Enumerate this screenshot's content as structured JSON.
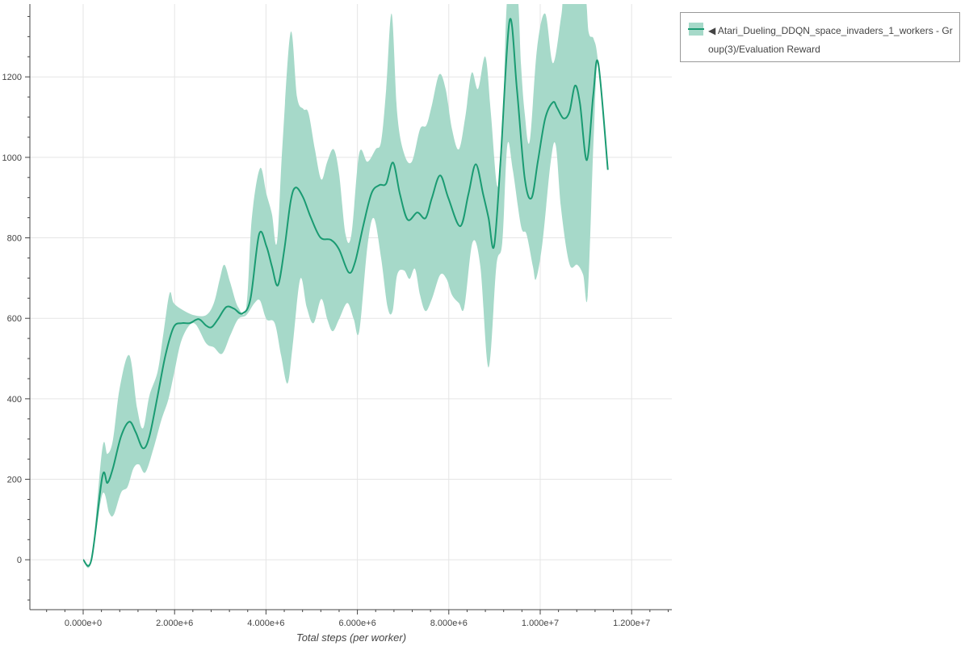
{
  "chart_data": {
    "type": "line",
    "title": "",
    "xlabel": "Total steps (per worker)",
    "ylabel": "",
    "xlim": [
      -1166000.0,
      12880000.0
    ],
    "ylim": [
      -124,
      1381
    ],
    "grid": true,
    "legend_placement": "outside-top-right",
    "x_ticks": [
      0,
      2000000.0,
      4000000.0,
      6000000.0,
      8000000.0,
      10000000.0,
      12000000.0
    ],
    "x_tick_labels": [
      "0.000e+0",
      "2.000e+6",
      "4.000e+6",
      "6.000e+6",
      "8.000e+6",
      "1.000e+7",
      "1.200e+7"
    ],
    "y_ticks": [
      0,
      200,
      400,
      600,
      800,
      1000,
      1200
    ],
    "y_tick_labels": [
      "0",
      "200",
      "400",
      "600",
      "800",
      "1000",
      "1200"
    ],
    "colors": {
      "line": "#1a9b72",
      "band": "#a6d9c9"
    },
    "series": [
      {
        "name": "◀ Atari_Dueling_DDQN_space_invaders_1_workers - Group(3)/Evaluation Reward",
        "mean": [
          [
            0,
            0
          ],
          [
            180000.0,
            0
          ],
          [
            420000.0,
            207
          ],
          [
            530000.0,
            191
          ],
          [
            650000.0,
            227
          ],
          [
            830000.0,
            307
          ],
          [
            1010000.0,
            343
          ],
          [
            1150000.0,
            317
          ],
          [
            1310000.0,
            277
          ],
          [
            1450000.0,
            307
          ],
          [
            1630000.0,
            408
          ],
          [
            1800000.0,
            508
          ],
          [
            1980000.0,
            578
          ],
          [
            2160000.0,
            588
          ],
          [
            2330000.0,
            588
          ],
          [
            2530000.0,
            598
          ],
          [
            2690000.0,
            582
          ],
          [
            2810000.0,
            578
          ],
          [
            2950000.0,
            598
          ],
          [
            3130000.0,
            628
          ],
          [
            3300000.0,
            624
          ],
          [
            3480000.0,
            612
          ],
          [
            3660000.0,
            648
          ],
          [
            3850000.0,
            809
          ],
          [
            4010000.0,
            779
          ],
          [
            4130000.0,
            729
          ],
          [
            4260000.0,
            682
          ],
          [
            4400000.0,
            770
          ],
          [
            4540000.0,
            891
          ],
          [
            4650000.0,
            925
          ],
          [
            4810000.0,
            901
          ],
          [
            4980000.0,
            851
          ],
          [
            5190000.0,
            801
          ],
          [
            5420000.0,
            795
          ],
          [
            5600000.0,
            771
          ],
          [
            5810000.0,
            714
          ],
          [
            5950000.0,
            740
          ],
          [
            6130000.0,
            831
          ],
          [
            6310000.0,
            911
          ],
          [
            6480000.0,
            931
          ],
          [
            6630000.0,
            935
          ],
          [
            6780000.0,
            987
          ],
          [
            6930000.0,
            909
          ],
          [
            7100000.0,
            845
          ],
          [
            7310000.0,
            863
          ],
          [
            7490000.0,
            849
          ],
          [
            7630000.0,
            899
          ],
          [
            7810000.0,
            955
          ],
          [
            7990000.0,
            899
          ],
          [
            8250000.0,
            829
          ],
          [
            8430000.0,
            909
          ],
          [
            8590000.0,
            983
          ],
          [
            8750000.0,
            909
          ],
          [
            8870000.0,
            849
          ],
          [
            8990000.0,
            779
          ],
          [
            9130000.0,
            987
          ],
          [
            9330000.0,
            1340
          ],
          [
            9490000.0,
            1170
          ],
          [
            9660000.0,
            949
          ],
          [
            9810000.0,
            899
          ],
          [
            9950000.0,
            991
          ],
          [
            10110000.0,
            1097
          ],
          [
            10280000.0,
            1137
          ],
          [
            10370000.0,
            1123
          ],
          [
            10510000.0,
            1097
          ],
          [
            10640000.0,
            1113
          ],
          [
            10760000.0,
            1178
          ],
          [
            10870000.0,
            1134
          ],
          [
            11020000.0,
            993
          ],
          [
            11160000.0,
            1154
          ],
          [
            11270000.0,
            1234
          ],
          [
            11480000.0,
            969
          ]
        ],
        "upper": [
          [
            0,
            0
          ],
          [
            180000.0,
            0
          ],
          [
            420000.0,
            277
          ],
          [
            530000.0,
            263
          ],
          [
            650000.0,
            297
          ],
          [
            800000.0,
            427
          ],
          [
            1010000.0,
            508
          ],
          [
            1180000.0,
            377
          ],
          [
            1310000.0,
            327
          ],
          [
            1450000.0,
            408
          ],
          [
            1630000.0,
            468
          ],
          [
            1750000.0,
            558
          ],
          [
            1890000.0,
            662
          ],
          [
            1980000.0,
            638
          ],
          [
            2160000.0,
            622
          ],
          [
            2420000.0,
            608
          ],
          [
            2690000.0,
            608
          ],
          [
            2860000.0,
            638
          ],
          [
            2990000.0,
            698
          ],
          [
            3090000.0,
            733
          ],
          [
            3220000.0,
            688
          ],
          [
            3390000.0,
            628
          ],
          [
            3570000.0,
            628
          ],
          [
            3690000.0,
            849
          ],
          [
            3870000.0,
            973
          ],
          [
            4010000.0,
            909
          ],
          [
            4130000.0,
            859
          ],
          [
            4240000.0,
            789
          ],
          [
            4360000.0,
            1030
          ],
          [
            4540000.0,
            1311
          ],
          [
            4680000.0,
            1150
          ],
          [
            4820000.0,
            1120
          ],
          [
            4930000.0,
            1110
          ],
          [
            5070000.0,
            1020
          ],
          [
            5210000.0,
            945
          ],
          [
            5340000.0,
            989
          ],
          [
            5480000.0,
            1020
          ],
          [
            5600000.0,
            959
          ],
          [
            5740000.0,
            809
          ],
          [
            5870000.0,
            809
          ],
          [
            6040000.0,
            1010
          ],
          [
            6220000.0,
            989
          ],
          [
            6400000.0,
            1020
          ],
          [
            6520000.0,
            1040
          ],
          [
            6630000.0,
            1170
          ],
          [
            6750000.0,
            1357
          ],
          [
            6870000.0,
            1110
          ],
          [
            7020000.0,
            1010
          ],
          [
            7190000.0,
            989
          ],
          [
            7370000.0,
            1070
          ],
          [
            7510000.0,
            1080
          ],
          [
            7630000.0,
            1130
          ],
          [
            7790000.0,
            1206
          ],
          [
            7930000.0,
            1170
          ],
          [
            8070000.0,
            1070
          ],
          [
            8220000.0,
            1020
          ],
          [
            8360000.0,
            1100
          ],
          [
            8500000.0,
            1210
          ],
          [
            8640000.0,
            1170
          ],
          [
            8800000.0,
            1250
          ],
          [
            8920000.0,
            1110
          ],
          [
            9060000.0,
            929
          ],
          [
            9170000.0,
            1030
          ],
          [
            9280000.0,
            1400
          ],
          [
            9490000.0,
            1420
          ],
          [
            9580000.0,
            1230
          ],
          [
            9660000.0,
            1110
          ],
          [
            9770000.0,
            1040
          ],
          [
            9930000.0,
            1270
          ],
          [
            10110000.0,
            1357
          ],
          [
            10280000.0,
            1234
          ],
          [
            10460000.0,
            1351
          ],
          [
            10550000.0,
            1420
          ],
          [
            10950000.0,
            1420
          ],
          [
            11060000.0,
            1311
          ],
          [
            11170000.0,
            1294
          ],
          [
            11270000.0,
            1234
          ],
          [
            11480000.0,
            969
          ]
        ],
        "lower": [
          [
            0,
            0
          ],
          [
            180000.0,
            0
          ],
          [
            420000.0,
            163
          ],
          [
            570000.0,
            116
          ],
          [
            670000.0,
            112
          ],
          [
            830000.0,
            167
          ],
          [
            970000.0,
            181
          ],
          [
            1100000.0,
            227
          ],
          [
            1220000.0,
            237
          ],
          [
            1360000.0,
            217
          ],
          [
            1540000.0,
            277
          ],
          [
            1710000.0,
            347
          ],
          [
            1860000.0,
            397
          ],
          [
            1980000.0,
            458
          ],
          [
            2160000.0,
            548
          ],
          [
            2420000.0,
            588
          ],
          [
            2690000.0,
            538
          ],
          [
            2860000.0,
            528
          ],
          [
            3040000.0,
            512
          ],
          [
            3220000.0,
            558
          ],
          [
            3390000.0,
            598
          ],
          [
            3570000.0,
            608
          ],
          [
            3750000.0,
            638
          ],
          [
            3870000.0,
            644
          ],
          [
            4010000.0,
            598
          ],
          [
            4190000.0,
            588
          ],
          [
            4330000.0,
            508
          ],
          [
            4470000.0,
            438
          ],
          [
            4580000.0,
            528
          ],
          [
            4750000.0,
            698
          ],
          [
            4890000.0,
            628
          ],
          [
            5040000.0,
            588
          ],
          [
            5210000.0,
            648
          ],
          [
            5340000.0,
            598
          ],
          [
            5460000.0,
            568
          ],
          [
            5600000.0,
            598
          ],
          [
            5780000.0,
            638
          ],
          [
            5920000.0,
            598
          ],
          [
            6040000.0,
            568
          ],
          [
            6220000.0,
            779
          ],
          [
            6360000.0,
            849
          ],
          [
            6520000.0,
            749
          ],
          [
            6660000.0,
            628
          ],
          [
            6770000.0,
            618
          ],
          [
            6870000.0,
            708
          ],
          [
            7020000.0,
            719
          ],
          [
            7140000.0,
            698
          ],
          [
            7260000.0,
            723
          ],
          [
            7370000.0,
            658
          ],
          [
            7490000.0,
            618
          ],
          [
            7630000.0,
            648
          ],
          [
            7810000.0,
            708
          ],
          [
            7950000.0,
            698
          ],
          [
            8070000.0,
            658
          ],
          [
            8220000.0,
            638
          ],
          [
            8340000.0,
            628
          ],
          [
            8520000.0,
            789
          ],
          [
            8690000.0,
            729
          ],
          [
            8870000.0,
            478
          ],
          [
            9040000.0,
            729
          ],
          [
            9170000.0,
            789
          ],
          [
            9280000.0,
            1030
          ],
          [
            9400000.0,
            969
          ],
          [
            9580000.0,
            829
          ],
          [
            9700000.0,
            809
          ],
          [
            9840000.0,
            729
          ],
          [
            9910000.0,
            698
          ],
          [
            10050000.0,
            789
          ],
          [
            10230000.0,
            989
          ],
          [
            10340000.0,
            1030
          ],
          [
            10460000.0,
            869
          ],
          [
            10640000.0,
            735
          ],
          [
            10810000.0,
            733
          ],
          [
            10940000.0,
            708
          ],
          [
            11040000.0,
            658
          ],
          [
            11170000.0,
            1050
          ],
          [
            11270000.0,
            1234
          ],
          [
            11480000.0,
            969
          ]
        ]
      }
    ]
  },
  "legend": {
    "label": "◀ Atari_Dueling_DDQN_space_invaders_1_workers - Group(3)/Evaluation Reward"
  }
}
